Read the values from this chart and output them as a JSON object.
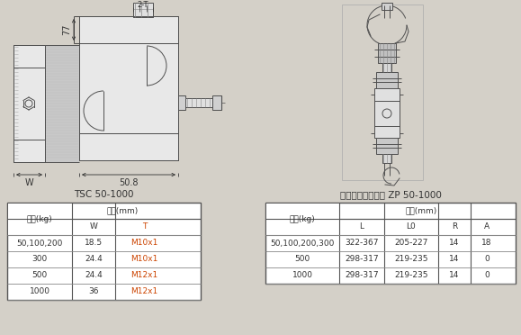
{
  "bg_color": "#d4d0c8",
  "table1_title": "TSC 50-1000",
  "table2_title": "关节轴承式连接件 ZP 50-1000",
  "table1_header1": "容量(kg)",
  "table1_header2": "尺寸(mm)",
  "table1_col1": "W",
  "table1_col2": "T",
  "table1_data": [
    [
      "50,100,200",
      "18.5",
      "M10x1"
    ],
    [
      "300",
      "24.4",
      "M10x1"
    ],
    [
      "500",
      "24.4",
      "M12x1"
    ],
    [
      "1000",
      "36",
      "M12x1"
    ]
  ],
  "table2_header1": "容量(kg)",
  "table2_header2": "尺寸(mm)",
  "table2_col1": "L",
  "table2_col2": "L0",
  "table2_col3": "R",
  "table2_col4": "A",
  "table2_data": [
    [
      "50,100,200,300",
      "322-367",
      "205-227",
      "14",
      "18"
    ],
    [
      "500",
      "298-317",
      "219-235",
      "14",
      "0"
    ],
    [
      "1000",
      "298-317",
      "219-235",
      "14",
      "0"
    ]
  ],
  "dim_50_8": "50.8",
  "dim_77": "77",
  "dim_2T": "2-T",
  "dim_W": "W",
  "lc_color": "#505050",
  "table_bg": "#ffffff",
  "font_size_table": 6.5,
  "font_size_title": 7.5
}
